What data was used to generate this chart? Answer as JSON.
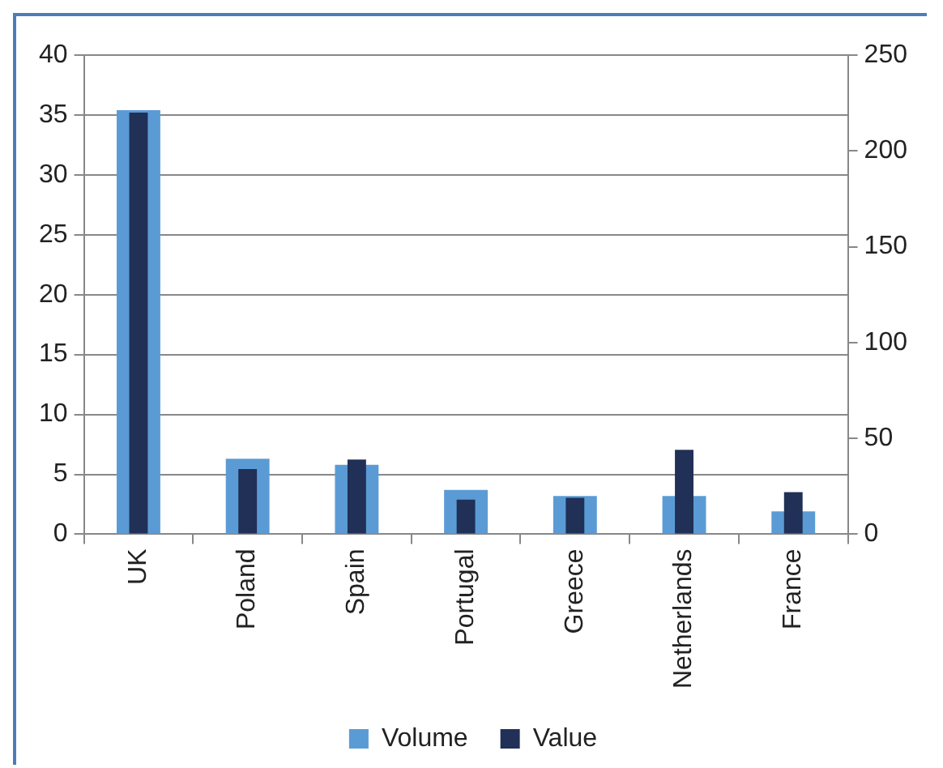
{
  "chart_data": {
    "type": "bar",
    "categories": [
      "UK",
      "Poland",
      "Spain",
      "Portugal",
      "Greece",
      "Netherlands",
      "France"
    ],
    "series": [
      {
        "name": "Volume",
        "color": "#5b9bd5",
        "values": [
          35.4,
          6.3,
          5.8,
          3.7,
          3.2,
          3.2,
          1.9
        ]
      },
      {
        "name": "Value",
        "color": "#203056",
        "values": [
          220,
          34,
          39,
          18,
          19,
          44,
          22
        ],
        "axis": "y2"
      }
    ],
    "ylim": [
      0,
      40
    ],
    "yticks": [
      0,
      5,
      10,
      15,
      20,
      25,
      30,
      35,
      40
    ],
    "y2lim": [
      0,
      250
    ],
    "y2ticks": [
      0,
      50,
      100,
      150,
      200,
      250
    ],
    "grid": "y",
    "legend": "bottom"
  }
}
